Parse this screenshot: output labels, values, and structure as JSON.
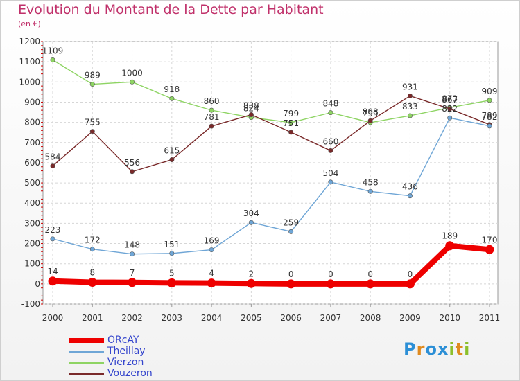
{
  "header": {
    "title": "Evolution du Montant de la Dette par Habitant",
    "subtitle": "(en €)"
  },
  "logo": {
    "letters": [
      "P",
      "r",
      "o",
      "x",
      "i",
      "t",
      "i"
    ],
    "colors": [
      "#2c8fd6",
      "#e08a1e",
      "#2c8fd6",
      "#2c8fd6",
      "#8cbf2a",
      "#e08a1e",
      "#8cbf2a"
    ]
  },
  "chart_data": {
    "type": "line",
    "x": [
      "2000",
      "2001",
      "2002",
      "2003",
      "2004",
      "2005",
      "2006",
      "2007",
      "2008",
      "2009",
      "2010",
      "2011"
    ],
    "ylim": [
      -100,
      1200
    ],
    "yticks": [
      -100,
      0,
      100,
      200,
      300,
      400,
      500,
      600,
      700,
      800,
      900,
      1000,
      1100,
      1200
    ],
    "grid": true,
    "legend_position": "bottom-left",
    "series": [
      {
        "name": "ORcAY",
        "color": "#ee0000",
        "values": [
          14,
          8,
          7,
          5,
          4,
          2,
          0,
          0,
          0,
          0,
          189,
          170
        ]
      },
      {
        "name": "Theillay",
        "color": "#6fa6d6",
        "values": [
          223,
          172,
          148,
          151,
          169,
          304,
          259,
          504,
          458,
          436,
          822,
          782
        ]
      },
      {
        "name": "Vierzon",
        "color": "#8ed463",
        "values": [
          1109,
          989,
          1000,
          918,
          860,
          824,
          799,
          848,
          799,
          833,
          873,
          909
        ]
      },
      {
        "name": "Vouzeron",
        "color": "#7a2a2a",
        "values": [
          584,
          755,
          556,
          615,
          781,
          838,
          751,
          660,
          808,
          931,
          867,
          789
        ]
      }
    ]
  }
}
